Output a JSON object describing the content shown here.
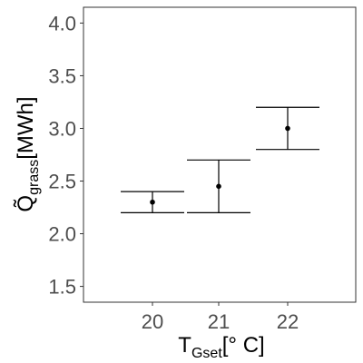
{
  "chart_data": {
    "type": "errorbar",
    "title": "",
    "xlabel": {
      "main": "T",
      "subscript": "Gset",
      "suffix": "[° C]"
    },
    "ylabel": {
      "main": "Q̃",
      "subscript": "grass",
      "suffix": "[MWh]"
    },
    "categories": [
      "20",
      "21",
      "22"
    ],
    "points": [
      {
        "x": "20",
        "y": 2.3,
        "lower": 2.2,
        "upper": 2.4
      },
      {
        "x": "21",
        "y": 2.45,
        "lower": 2.2,
        "upper": 2.7
      },
      {
        "x": "22",
        "y": 3.0,
        "lower": 2.8,
        "upper": 3.2
      }
    ],
    "ylim": [
      1.35,
      4.15
    ],
    "yticks": [
      "1.5",
      "2.0",
      "2.5",
      "3.0",
      "3.5",
      "4.0"
    ],
    "grid": false,
    "colors": {
      "point": "#000000",
      "errorbar": "#000000",
      "panel_border": "#333333",
      "tick_label": "#4d4d4d"
    }
  }
}
